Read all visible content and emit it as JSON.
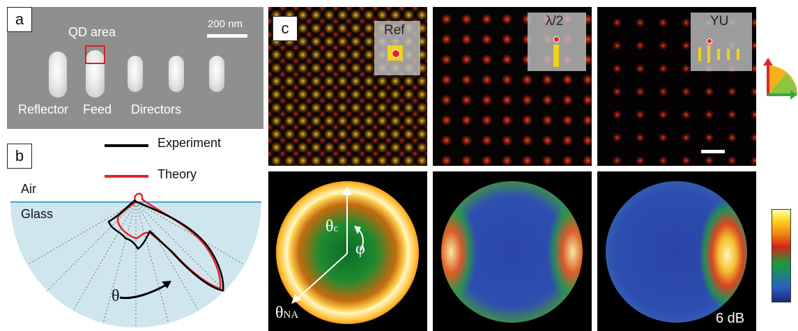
{
  "panel_a": {
    "label": "a",
    "qd_area": "QD area",
    "scalebar": "200 nm",
    "reflector": "Reflector",
    "feed": "Feed",
    "directors": "Directors"
  },
  "panel_b": {
    "label": "b",
    "legend_experiment": "Experiment",
    "legend_theory": "Theory",
    "air": "Air",
    "glass": "Glass",
    "theta": "θ",
    "colors": {
      "experiment": "#000000",
      "theory": "#e8202a",
      "glass_fill": "#cfe6ef",
      "interface": "#3fa9d6"
    }
  },
  "panel_c": {
    "label": "c",
    "insets": [
      "Ref",
      "λ/2",
      "YU"
    ],
    "theta_c_base": "θ",
    "theta_c_sub": "c",
    "phi": "φ",
    "theta_na_base": "θ",
    "theta_na_sub": "NA",
    "db_label": "6 dB"
  }
}
